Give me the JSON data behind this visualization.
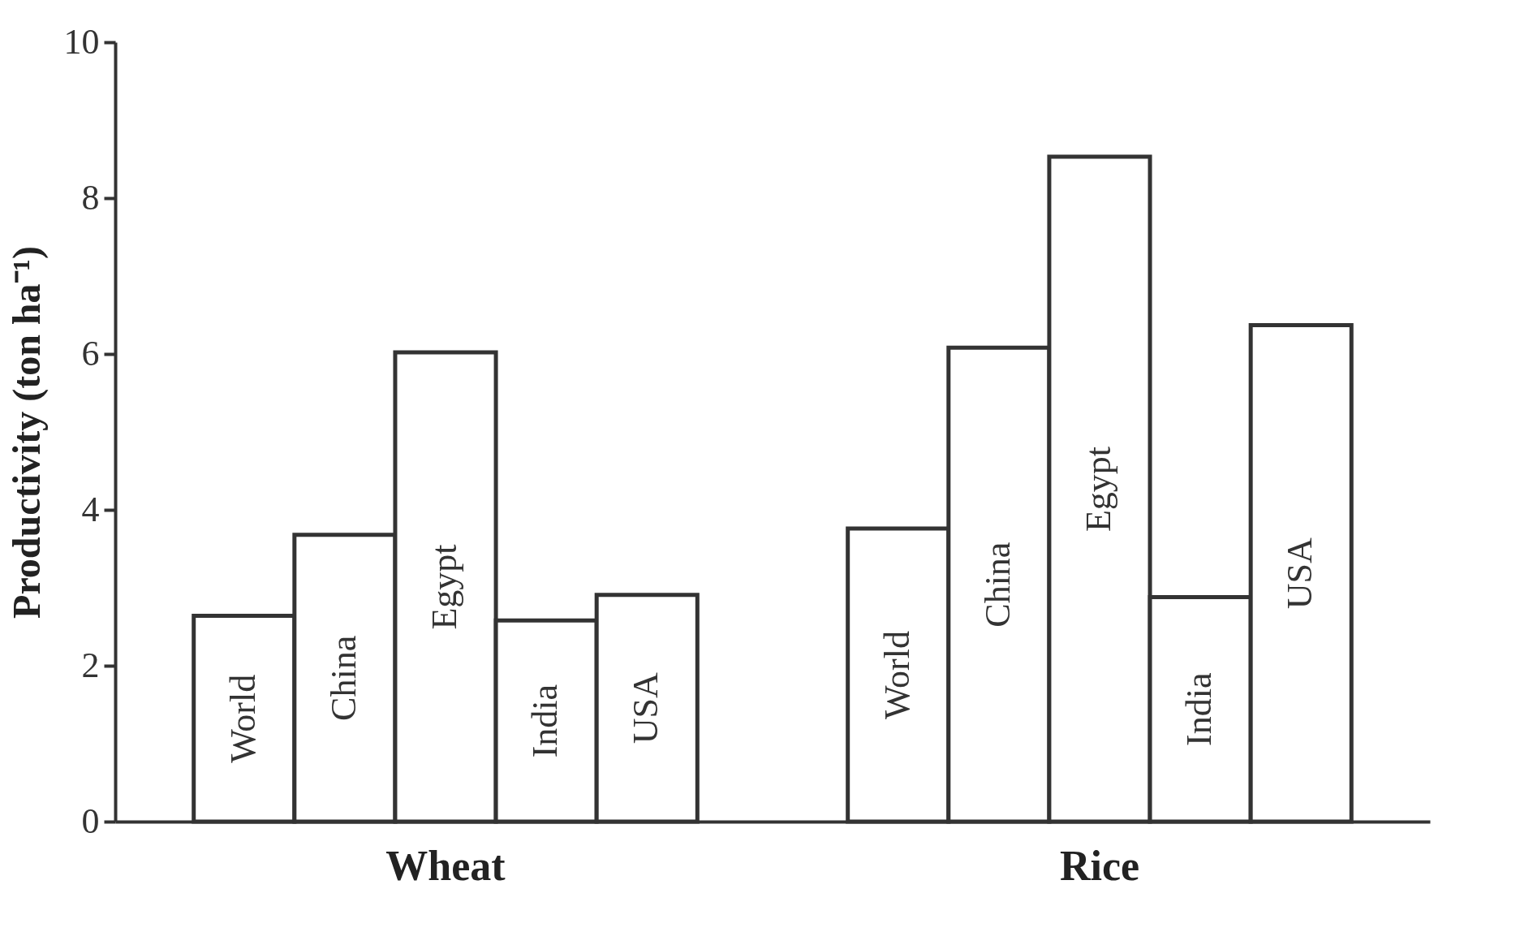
{
  "chart_data": {
    "type": "bar",
    "ylabel": "Productivity (ton ha⁻¹)",
    "categories": [
      "Wheat",
      "Rice"
    ],
    "series": [
      {
        "name": "World",
        "color": "#ffffff",
        "values": [
          2.64,
          3.76
        ]
      },
      {
        "name": "China",
        "color": "#ffffff",
        "values": [
          3.68,
          6.08
        ]
      },
      {
        "name": "Egypt",
        "color": "#ffffff",
        "values": [
          6.02,
          8.53
        ]
      },
      {
        "name": "India",
        "color": "#ffffff",
        "values": [
          2.58,
          2.88
        ]
      },
      {
        "name": "USA",
        "color": "#ffffff",
        "values": [
          2.91,
          6.37
        ]
      }
    ],
    "ylim": [
      0,
      10
    ],
    "yticks": [
      0,
      2,
      4,
      6,
      8,
      10
    ],
    "grid": false
  }
}
